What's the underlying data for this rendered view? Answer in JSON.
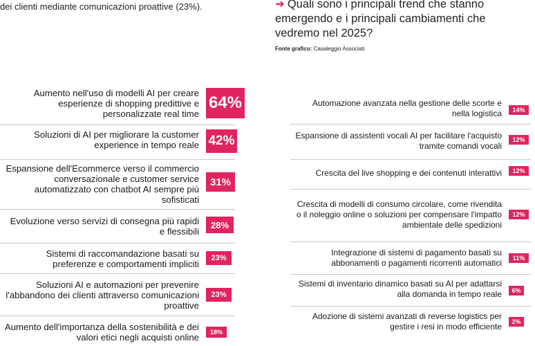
{
  "intro_text": "dei clienti mediante comunicazioni proattive (23%).",
  "question": {
    "arrow_icon": "right-arrow-icon",
    "text": "Quali sono i principali trend che stanno emergendo e i principali cambiamenti che vedremo nel 2025?"
  },
  "source": {
    "label": "Fonte grafico:",
    "value": "Casaleggio Associati"
  },
  "colors": {
    "accent": "#e0245e",
    "divider": "#c9c9c9"
  },
  "chart_data": [
    {
      "type": "bar",
      "categories": [
        "Aumento nell'uso di modelli AI per creare esperienze di shopping predittive e personalizzate real time",
        "Soluzioni di AI per migliorare la customer experience in tempo reale",
        "Espansione dell'Ecommerce verso il commercio conversazionale e customer service automatizzato con chatbot AI sempre più sofisticati",
        "Evoluzione verso servizi di consegna più rapidi e flessibili",
        "Sistemi di raccomandazione basati su preferenze e comportamenti impliciti",
        "Soluzioni AI e automazioni per prevenire l'abbandono dei clienti attraverso comunicazioni proattive",
        "Aumento dell'importanza della sostenibilità e dei valori etici negli acquisti online"
      ],
      "values": [
        64,
        42,
        31,
        28,
        23,
        23,
        18
      ],
      "value_labels": [
        "64%",
        "42%",
        "31%",
        "28%",
        "23%",
        "23%",
        "18%"
      ]
    },
    {
      "type": "bar",
      "categories": [
        "Automazione avanzata nella gestione delle scorte e nella logistica",
        "Espansione di assistenti vocali AI per facilitare l'acquisto tramite comandi vocali",
        "Crescita del live shopping e dei contenuti interattivi",
        "Crescita di modelli di consumo circolare, come rivendita o il noleggio online o soluzioni per compensare l'impatto ambientale delle spedizioni",
        "Integrazione di sistemi di pagamento basati su abbonamenti o pagamenti ricorrenti automatici",
        "Sistemi di inventario dinamico basati su AI per adattarsi alla domanda in tempo reale",
        "Adozione di sistemi avanzati di reverse logistics per gestire i resi in modo efficiente"
      ],
      "values": [
        14,
        12,
        12,
        12,
        11,
        6,
        2
      ],
      "value_labels": [
        "14%",
        "12%",
        "12%",
        "12%",
        "11%",
        "6%",
        "2%"
      ]
    }
  ]
}
